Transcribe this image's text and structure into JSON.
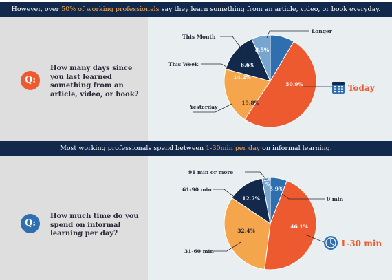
{
  "banner_top": {
    "before": "However, over ",
    "highlight": "50% of working professionals",
    "after": " say they learn something from an article, video, or book everyday."
  },
  "banner_mid": {
    "before": "Most working professionals spend between ",
    "highlight": "1-30min per day",
    "after": " on informal learning."
  },
  "q1": {
    "badge": "Q:",
    "lines": [
      "How many days since",
      "you last learned",
      "something from an",
      "article, video, or book?"
    ]
  },
  "q2": {
    "badge": "Q:",
    "lines": [
      "How much time do you",
      "spend on informal",
      "learning per day?"
    ]
  },
  "colors": {
    "navy": "#13294b",
    "orange": "#ee5a2f",
    "light_orange": "#f5a64c",
    "blue": "#2f6fb0",
    "light_blue": "#76a5cf",
    "highlight_text": "#f5a64c"
  },
  "callout1": {
    "icon": "calendar-icon",
    "label": "Today"
  },
  "callout2": {
    "icon": "clock-icon",
    "label": "1-30 min"
  },
  "chart_data": [
    {
      "type": "pie",
      "title": "",
      "slices": [
        {
          "label": "Longer",
          "value": 8.5,
          "text": "8.5%",
          "color": "#2f6fb0"
        },
        {
          "label": "Today",
          "value": 50.9,
          "text": "50.9%",
          "color": "#ee5a2f"
        },
        {
          "label": "Yesterday",
          "value": 19.8,
          "text": "19.8%",
          "color": "#f5a64c"
        },
        {
          "label": "This Week",
          "value": 14.2,
          "text": "14.2%",
          "color": "#13294b"
        },
        {
          "label": "This Month",
          "value": 6.6,
          "text": "6.6%",
          "color": "#76a5cf"
        }
      ]
    },
    {
      "type": "pie",
      "title": "",
      "slices": [
        {
          "label": "0 min",
          "value": 5.9,
          "text": "5.9%",
          "color": "#2f6fb0"
        },
        {
          "label": "1-30 min",
          "value": 46.1,
          "text": "46.1%",
          "color": "#ee5a2f"
        },
        {
          "label": "31-60 min",
          "value": 32.4,
          "text": "32.4%",
          "color": "#f5a64c"
        },
        {
          "label": "61-90 min",
          "value": 12.7,
          "text": "12.7%",
          "color": "#13294b"
        },
        {
          "label": "91 min or more",
          "value": 2.9,
          "text": "2.9%",
          "color": "#76a5cf"
        }
      ]
    }
  ]
}
